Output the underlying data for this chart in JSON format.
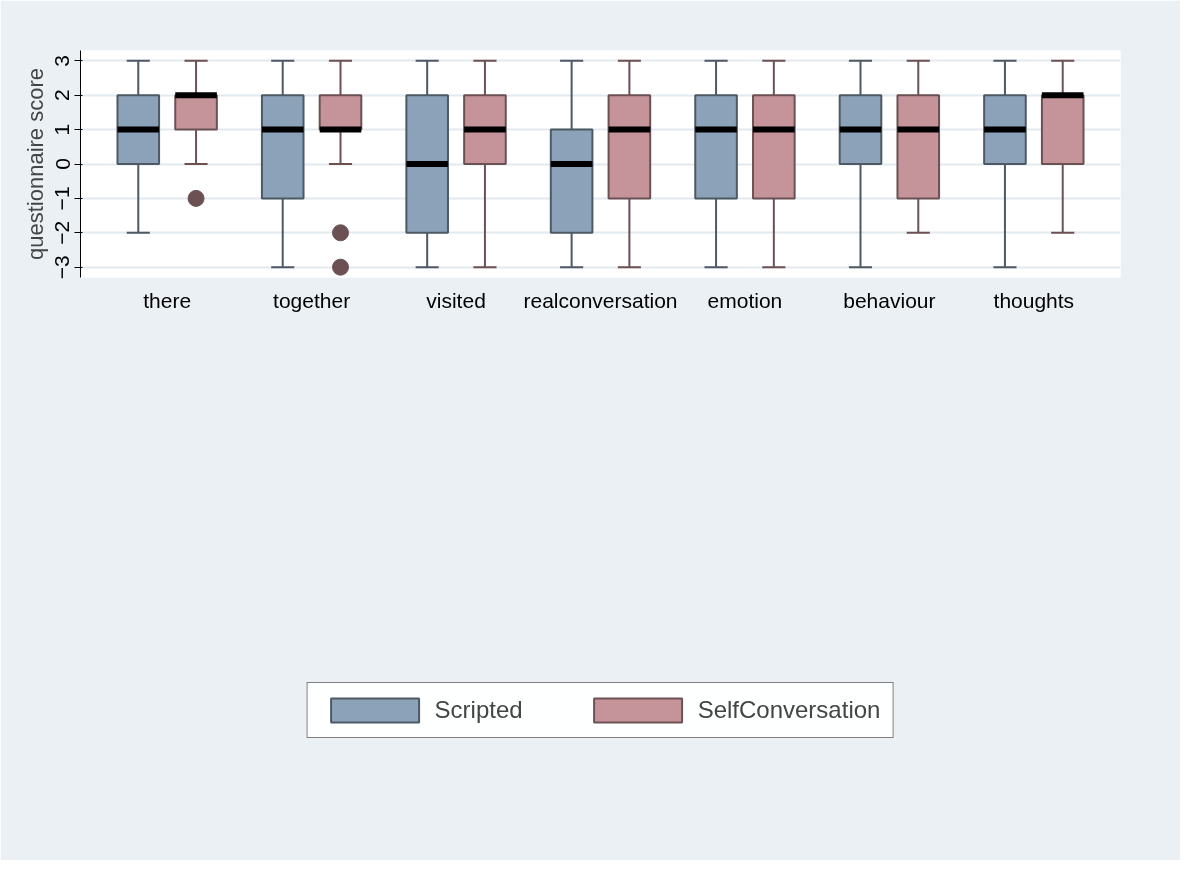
{
  "chart_data": {
    "type": "box",
    "ylabel": "questionnaire score",
    "categories": [
      "there",
      "together",
      "visited",
      "realconversation",
      "emotion",
      "behaviour",
      "thoughts"
    ],
    "ylim": [
      -3.3,
      3.3
    ],
    "yticks": [
      -3,
      -2,
      -1,
      0,
      1,
      2,
      3
    ],
    "grid": "y",
    "legend": "bottom",
    "series": [
      {
        "name": "Scripted",
        "color": "#8ca2b8",
        "boxes": [
          {
            "low": -2,
            "q1": 0,
            "median": 1,
            "q3": 2,
            "high": 3
          },
          {
            "low": -3,
            "q1": -1,
            "median": 1,
            "q3": 2,
            "high": 3
          },
          {
            "low": -3,
            "q1": -2,
            "median": 0,
            "q3": 2,
            "high": 3
          },
          {
            "low": -3,
            "q1": -2,
            "median": 0,
            "q3": 1,
            "high": 3
          },
          {
            "low": -3,
            "q1": -1,
            "median": 1,
            "q3": 2,
            "high": 3
          },
          {
            "low": -3,
            "q1": 0,
            "median": 1,
            "q3": 2,
            "high": 3
          },
          {
            "low": -3,
            "q1": 0,
            "median": 1,
            "q3": 2,
            "high": 3
          }
        ]
      },
      {
        "name": "SelfConversation",
        "color": "#c4949a",
        "boxes": [
          {
            "low": 0,
            "q1": 1,
            "median": 2,
            "q3": 2,
            "high": 3,
            "outliers": [
              -1
            ]
          },
          {
            "low": 0,
            "q1": 1,
            "median": 1,
            "q3": 2,
            "high": 3,
            "outliers": [
              -2,
              -3
            ]
          },
          {
            "low": -3,
            "q1": 0,
            "median": 1,
            "q3": 2,
            "high": 3
          },
          {
            "low": -3,
            "q1": -1,
            "median": 1,
            "q3": 2,
            "high": 3
          },
          {
            "low": -3,
            "q1": -1,
            "median": 1,
            "q3": 2,
            "high": 3
          },
          {
            "low": -2,
            "q1": -1,
            "median": 1,
            "q3": 2,
            "high": 3
          },
          {
            "low": -2,
            "q1": 0,
            "median": 2,
            "q3": 2,
            "high": 3
          }
        ]
      }
    ]
  }
}
